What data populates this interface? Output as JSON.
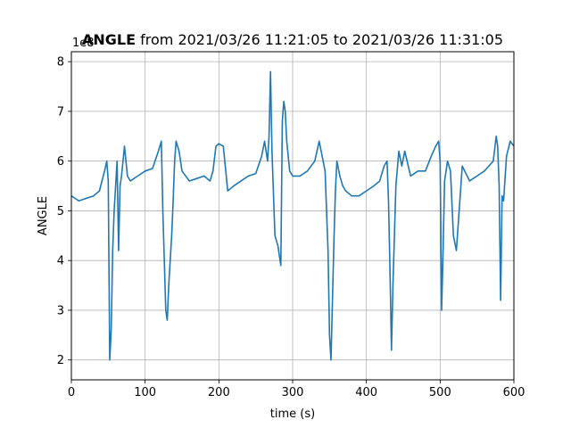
{
  "chart_data": {
    "type": "line",
    "title_bold": "ANGLE",
    "title_rest": " from 2021/03/26 11:21:05 to 2021/03/26 11:31:05",
    "xlabel": "time (s)",
    "ylabel": "ANGLE",
    "offset_label": "1e8",
    "xlim": [
      0,
      600
    ],
    "ylim": [
      1.6,
      8.2
    ],
    "xticks": [
      0,
      100,
      200,
      300,
      400,
      500,
      600
    ],
    "yticks": [
      2,
      3,
      4,
      5,
      6,
      7,
      8
    ],
    "grid": true,
    "color": "#1f77b4",
    "series": [
      {
        "x": [
          0,
          10,
          20,
          30,
          38,
          45,
          48,
          50,
          52,
          54,
          56,
          58,
          60,
          62,
          64,
          66,
          68,
          72,
          76,
          80,
          90,
          100,
          110,
          118,
          122,
          124,
          126,
          128,
          130,
          132,
          134,
          136,
          138,
          140,
          142,
          146,
          150,
          160,
          170,
          180,
          188,
          192,
          196,
          200,
          206,
          212,
          220,
          230,
          240,
          250,
          258,
          262,
          266,
          268,
          270,
          272,
          276,
          280,
          284,
          286,
          288,
          290,
          292,
          296,
          300,
          310,
          320,
          330,
          336,
          340,
          344,
          348,
          350,
          352,
          354,
          356,
          358,
          360,
          364,
          368,
          372,
          380,
          390,
          400,
          410,
          418,
          424,
          428,
          430,
          432,
          434,
          436,
          438,
          440,
          444,
          448,
          452,
          460,
          470,
          480,
          488,
          494,
          498,
          500,
          502,
          504,
          506,
          510,
          514,
          518,
          522,
          530,
          540,
          550,
          560,
          566,
          572,
          576,
          578,
          580,
          582,
          584,
          586,
          590,
          595,
          600
        ],
        "y": [
          5.3,
          5.2,
          5.25,
          5.3,
          5.4,
          5.8,
          6.0,
          5.6,
          2.0,
          2.6,
          4.2,
          5.0,
          5.5,
          6.0,
          4.2,
          5.5,
          5.7,
          6.3,
          5.7,
          5.6,
          5.7,
          5.8,
          5.85,
          6.2,
          6.4,
          5.0,
          4.0,
          3.0,
          2.8,
          3.5,
          4.0,
          4.5,
          5.2,
          6.0,
          6.4,
          6.2,
          5.8,
          5.6,
          5.65,
          5.7,
          5.6,
          5.8,
          6.3,
          6.35,
          6.3,
          5.4,
          5.5,
          5.6,
          5.7,
          5.75,
          6.1,
          6.4,
          6.0,
          6.5,
          7.8,
          6.2,
          4.5,
          4.3,
          3.9,
          6.8,
          7.2,
          7.0,
          6.4,
          5.8,
          5.7,
          5.7,
          5.8,
          6.0,
          6.4,
          6.1,
          5.8,
          4.2,
          2.5,
          2.0,
          3.2,
          4.4,
          5.4,
          6.0,
          5.7,
          5.5,
          5.4,
          5.3,
          5.3,
          5.4,
          5.5,
          5.6,
          5.9,
          6.0,
          5.2,
          3.8,
          2.2,
          3.5,
          4.5,
          5.5,
          6.2,
          5.9,
          6.2,
          5.7,
          5.8,
          5.8,
          6.1,
          6.3,
          6.4,
          6.0,
          3.0,
          4.2,
          5.6,
          6.0,
          5.8,
          4.5,
          4.2,
          5.9,
          5.6,
          5.7,
          5.8,
          5.9,
          6.0,
          6.5,
          6.3,
          5.5,
          3.2,
          5.3,
          5.2,
          6.1,
          6.4,
          6.3
        ]
      }
    ]
  }
}
